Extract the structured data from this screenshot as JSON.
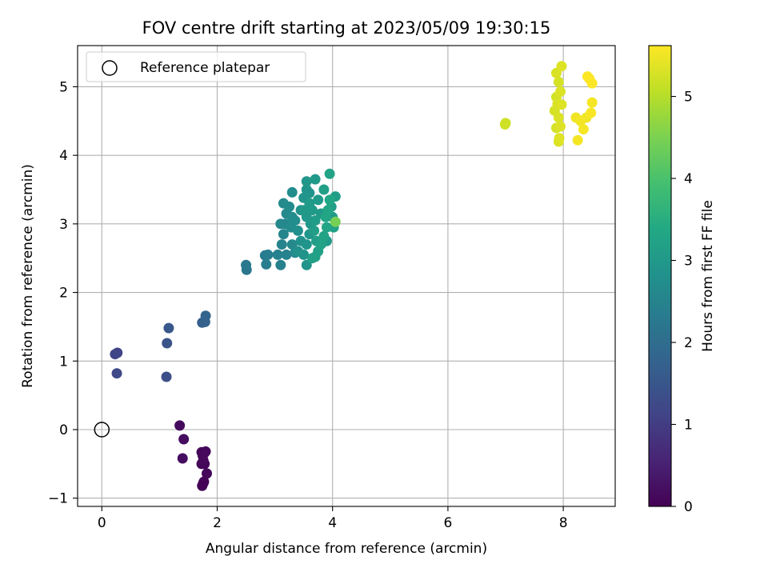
{
  "chart_data": {
    "type": "scatter",
    "title": "FOV centre drift starting at 2023/05/09 19:30:15",
    "xlabel": "Angular distance from reference (arcmin)",
    "ylabel": "Rotation from reference (arcmin)",
    "xlim": [
      -0.42,
      8.9
    ],
    "ylim": [
      -1.12,
      5.6
    ],
    "xticks": [
      0,
      2,
      4,
      6,
      8
    ],
    "xtick_labels": [
      "0",
      "2",
      "4",
      "6",
      "8"
    ],
    "yticks": [
      -1,
      0,
      1,
      2,
      3,
      4,
      5
    ],
    "ytick_labels": [
      "−1",
      "0",
      "1",
      "2",
      "3",
      "4",
      "5"
    ],
    "grid": true,
    "legend": {
      "position": "top-left",
      "entries": [
        "Reference platepar"
      ]
    },
    "reference_point": {
      "x": 0,
      "y": 0
    },
    "colorbar": {
      "label": "Hours from first FF file",
      "range": [
        0,
        5.62
      ],
      "ticks": [
        0,
        1,
        2,
        3,
        4,
        5
      ],
      "tick_labels": [
        "0",
        "1",
        "2",
        "3",
        "4",
        "5"
      ],
      "colormap": "viridis"
    },
    "points": [
      [
        1.35,
        0.06,
        0.15
      ],
      [
        1.42,
        -0.14,
        0.18
      ],
      [
        1.4,
        -0.42,
        0.2
      ],
      [
        1.73,
        -0.33,
        0.08
      ],
      [
        1.78,
        -0.34,
        0.1
      ],
      [
        1.76,
        -0.45,
        0.12
      ],
      [
        1.73,
        -0.5,
        0.05
      ],
      [
        1.78,
        -0.5,
        0.06
      ],
      [
        1.82,
        -0.64,
        0.09
      ],
      [
        1.76,
        -0.78,
        0.02
      ],
      [
        1.74,
        -0.82,
        0.03
      ],
      [
        1.77,
        -0.76,
        0.04
      ],
      [
        1.75,
        -0.38,
        0.11
      ],
      [
        1.8,
        -0.32,
        0.13
      ],
      [
        0.23,
        1.1,
        1.15
      ],
      [
        0.27,
        1.12,
        1.12
      ],
      [
        0.26,
        0.82,
        1.22
      ],
      [
        1.12,
        0.77,
        1.35
      ],
      [
        1.13,
        1.26,
        1.45
      ],
      [
        1.16,
        1.48,
        1.55
      ],
      [
        1.74,
        1.56,
        1.7
      ],
      [
        1.79,
        1.57,
        1.75
      ],
      [
        1.8,
        1.66,
        1.82
      ],
      [
        2.5,
        2.4,
        2.25
      ],
      [
        2.51,
        2.33,
        2.2
      ],
      [
        2.83,
        2.54,
        2.3
      ],
      [
        2.85,
        2.41,
        2.35
      ],
      [
        2.88,
        2.55,
        2.38
      ],
      [
        3.05,
        2.55,
        2.42
      ],
      [
        3.1,
        2.4,
        2.45
      ],
      [
        3.12,
        2.7,
        2.5
      ],
      [
        3.15,
        2.85,
        2.55
      ],
      [
        3.18,
        3.0,
        2.58
      ],
      [
        3.1,
        3.0,
        2.6
      ],
      [
        3.2,
        3.15,
        2.62
      ],
      [
        3.15,
        3.3,
        2.65
      ],
      [
        3.25,
        3.25,
        2.68
      ],
      [
        3.3,
        3.1,
        2.7
      ],
      [
        3.28,
        2.95,
        2.72
      ],
      [
        3.35,
        3.05,
        2.75
      ],
      [
        3.4,
        2.9,
        2.78
      ],
      [
        3.45,
        2.75,
        2.8
      ],
      [
        3.4,
        2.6,
        2.82
      ],
      [
        3.5,
        2.55,
        2.85
      ],
      [
        3.55,
        2.4,
        2.88
      ],
      [
        3.55,
        2.7,
        2.9
      ],
      [
        3.6,
        2.85,
        2.92
      ],
      [
        3.62,
        3.0,
        2.95
      ],
      [
        3.55,
        3.1,
        2.98
      ],
      [
        3.5,
        3.2,
        3.0
      ],
      [
        3.6,
        3.3,
        3.02
      ],
      [
        3.65,
        3.2,
        3.05
      ],
      [
        3.7,
        3.05,
        3.08
      ],
      [
        3.68,
        2.9,
        3.1
      ],
      [
        3.72,
        2.75,
        3.12
      ],
      [
        3.75,
        2.6,
        3.15
      ],
      [
        3.7,
        2.52,
        3.18
      ],
      [
        3.65,
        2.5,
        3.2
      ],
      [
        3.8,
        2.7,
        3.22
      ],
      [
        3.85,
        2.82,
        3.25
      ],
      [
        3.9,
        2.95,
        3.28
      ],
      [
        3.88,
        3.1,
        3.3
      ],
      [
        3.92,
        3.2,
        3.32
      ],
      [
        3.95,
        3.35,
        3.35
      ],
      [
        3.98,
        3.25,
        3.1
      ],
      [
        4.0,
        3.1,
        3.0
      ],
      [
        4.02,
        2.95,
        3.2
      ],
      [
        3.9,
        2.75,
        3.05
      ],
      [
        3.85,
        3.5,
        3.15
      ],
      [
        3.95,
        3.73,
        3.25
      ],
      [
        4.05,
        3.4,
        3.12
      ],
      [
        3.7,
        3.65,
        3.0
      ],
      [
        3.55,
        3.62,
        2.95
      ],
      [
        3.55,
        3.5,
        2.9
      ],
      [
        3.6,
        3.45,
        2.85
      ],
      [
        3.3,
        3.46,
        2.7
      ],
      [
        3.5,
        3.38,
        2.88
      ],
      [
        3.45,
        3.2,
        2.82
      ],
      [
        3.3,
        2.7,
        2.6
      ],
      [
        3.35,
        2.58,
        2.65
      ],
      [
        3.2,
        2.55,
        2.5
      ],
      [
        3.75,
        3.35,
        3.05
      ],
      [
        3.8,
        3.15,
        3.0
      ],
      [
        4.05,
        3.03,
        4.45
      ],
      [
        7.0,
        4.47,
        5.2
      ],
      [
        6.99,
        4.45,
        5.22
      ],
      [
        7.88,
        5.2,
        5.3
      ],
      [
        7.97,
        5.3,
        5.35
      ],
      [
        7.92,
        5.07,
        5.28
      ],
      [
        7.95,
        4.93,
        5.32
      ],
      [
        7.88,
        4.85,
        5.25
      ],
      [
        7.85,
        4.65,
        5.28
      ],
      [
        7.9,
        4.75,
        5.3
      ],
      [
        7.97,
        4.74,
        5.34
      ],
      [
        7.92,
        4.55,
        5.3
      ],
      [
        7.95,
        4.42,
        5.33
      ],
      [
        7.88,
        4.4,
        5.28
      ],
      [
        7.93,
        4.25,
        5.35
      ],
      [
        7.92,
        4.2,
        5.31
      ],
      [
        8.25,
        4.22,
        5.55
      ],
      [
        8.22,
        4.55,
        5.5
      ],
      [
        8.3,
        4.5,
        5.52
      ],
      [
        8.35,
        4.38,
        5.55
      ],
      [
        8.4,
        4.55,
        5.5
      ],
      [
        8.48,
        4.62,
        5.58
      ],
      [
        8.5,
        4.77,
        5.55
      ],
      [
        8.42,
        5.15,
        5.6
      ],
      [
        8.45,
        5.12,
        5.58
      ],
      [
        8.5,
        5.05,
        5.6
      ]
    ]
  }
}
